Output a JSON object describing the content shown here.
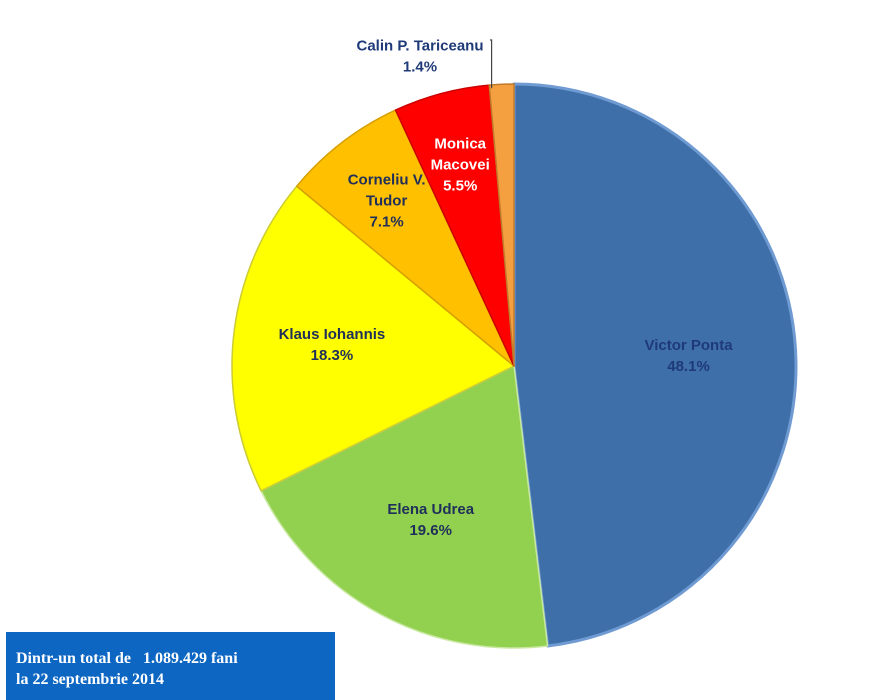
{
  "chart_data": {
    "type": "pie",
    "slices": [
      {
        "label": [
          "Victor Ponta"
        ],
        "value": 48.1,
        "value_label": "48.1%",
        "color": "#3f6fa8",
        "edge": "#6f9bd2",
        "text_color": "#1f3a78"
      },
      {
        "label": [
          "Elena Udrea"
        ],
        "value": 19.6,
        "value_label": "19.6%",
        "color": "#92d050",
        "edge": "#c8e8a0",
        "text_color": "#1f2f5a"
      },
      {
        "label": [
          "Klaus Iohannis"
        ],
        "value": 18.3,
        "value_label": "18.3%",
        "color": "#ffff00",
        "edge": "#cccc33",
        "text_color": "#1f2f5a"
      },
      {
        "label": [
          "Corneliu V.",
          "Tudor"
        ],
        "value": 7.1,
        "value_label": "7.1%",
        "color": "#ffc000",
        "edge": "#d6a000",
        "text_color": "#1f2f5a"
      },
      {
        "label": [
          "Monica",
          "Macovei"
        ],
        "value": 5.5,
        "value_label": "5.5%",
        "color": "#ff0000",
        "edge": "#cc0000",
        "text_color": "#ffffff"
      },
      {
        "label": [
          "Calin P. Tariceanu"
        ],
        "value": 1.4,
        "value_label": "1.4%",
        "color": "#f4a040",
        "edge": "#c07a2a",
        "text_color": "#1f3a78"
      }
    ]
  },
  "footnote": {
    "line1": "Dintr-un total de   1.089.429 fani",
    "line2": "la 22 septembrie 2014",
    "background": "#0c66c2"
  }
}
